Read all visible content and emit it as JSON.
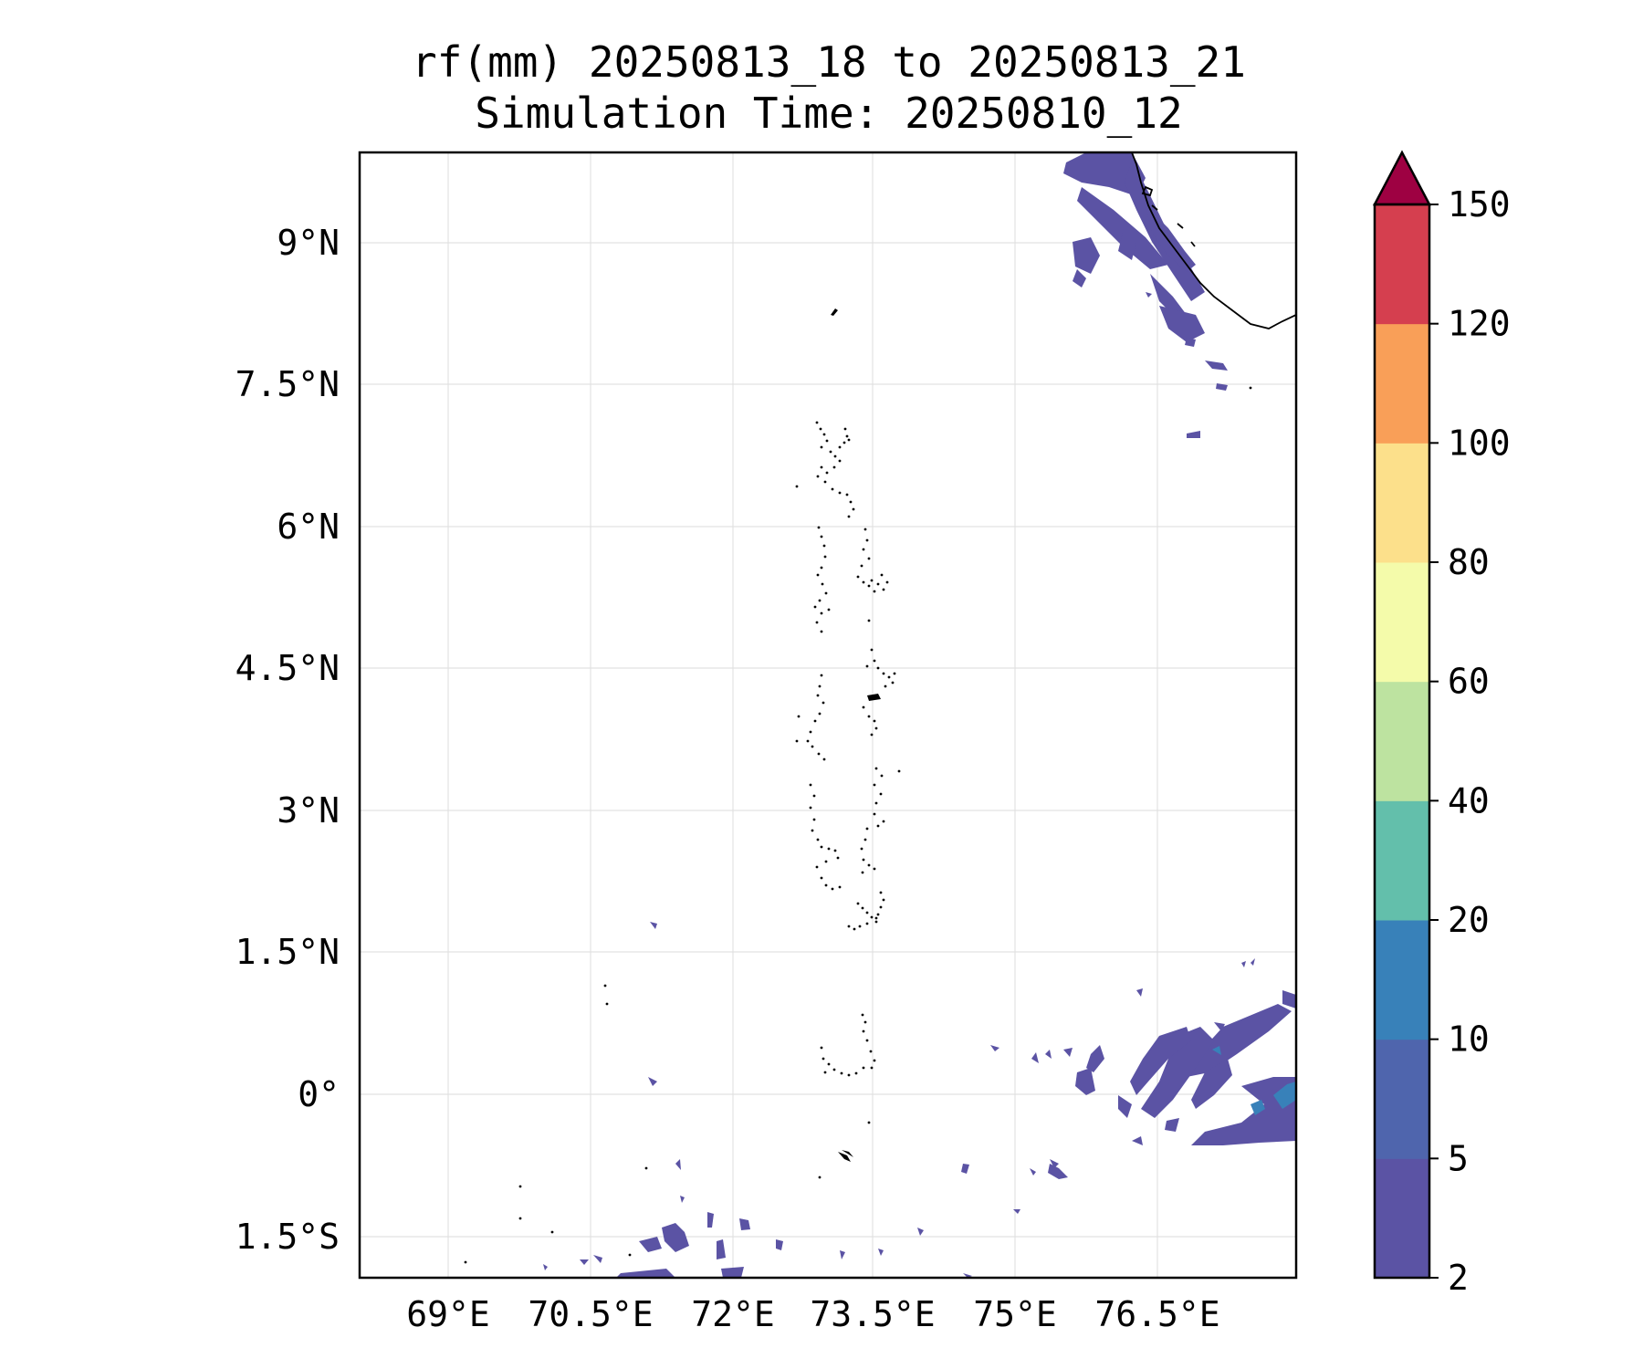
{
  "title_line1": "rf(mm) 20250813_18 to 20250813_21",
  "title_line2": "Simulation Time: 20250810_12",
  "lon_ticks": [
    "69°E",
    "70.5°E",
    "72°E",
    "73.5°E",
    "75°E",
    "76.5°E"
  ],
  "lat_ticks": [
    "9°N",
    "7.5°N",
    "6°N",
    "4.5°N",
    "3°N",
    "1.5°N",
    "0°",
    "1.5°S"
  ],
  "colorbar": {
    "levels": [
      "2",
      "5",
      "10",
      "20",
      "40",
      "60",
      "80",
      "100",
      "120",
      "150"
    ],
    "colors": [
      "#5b53a4",
      "#4f65ad",
      "#3881b9",
      "#63bfab",
      "#bde3a0",
      "#f4fbaa",
      "#fce08b",
      "#f99f58",
      "#d53f4f",
      "#9e0142"
    ],
    "extend": "max"
  },
  "chart_data": {
    "type": "map",
    "xlim": [
      68.0,
      78.0
    ],
    "ylim": [
      -1.9,
      9.95
    ],
    "grid": true,
    "variable": "rf(mm)"
  }
}
